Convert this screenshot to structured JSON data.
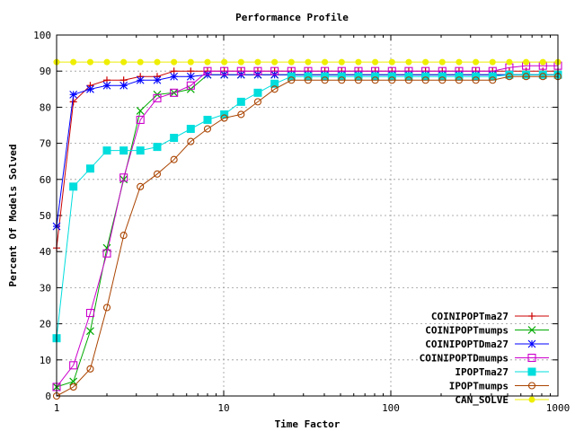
{
  "chart_data": {
    "type": "line",
    "title": "Performance Profile",
    "xlabel": "Time Factor",
    "ylabel": "Percent Of Models Solved",
    "xscale": "log",
    "xlim": [
      1,
      1000
    ],
    "ylim": [
      0,
      100
    ],
    "x_ticks": [
      1,
      10,
      100,
      1000
    ],
    "x_tick_labels": [
      "1",
      "10",
      "100",
      "1000"
    ],
    "y_ticks": [
      0,
      10,
      20,
      30,
      40,
      50,
      60,
      70,
      80,
      90,
      100
    ],
    "y_tick_labels": [
      "0",
      "10",
      "20",
      "30",
      "40",
      "50",
      "60",
      "70",
      "80",
      "90",
      "100"
    ],
    "grid": true,
    "legend_position": "bottom-right",
    "series": [
      {
        "name": "COINIPOPTma27",
        "color": "#cc0000",
        "marker": "plus",
        "x": [
          1,
          1.26,
          1.59,
          2,
          2.52,
          3.17,
          4,
          5.04,
          6.35,
          8,
          10.08,
          12.7,
          16,
          20.16,
          25.4,
          32,
          40.3,
          50.8,
          64,
          80.6,
          101.6,
          128,
          161.3,
          203.2,
          256,
          322.5,
          406.4,
          512,
          645.1,
          812.8,
          1000
        ],
        "y": [
          41,
          81.5,
          86,
          87.5,
          87.5,
          88.5,
          88.5,
          90,
          90,
          90,
          90,
          90,
          90,
          90,
          90,
          90,
          90,
          90,
          90,
          90,
          90,
          90,
          90,
          90,
          90,
          90,
          90,
          90,
          90,
          90,
          90
        ]
      },
      {
        "name": "COINIPOPTmumps",
        "color": "#00aa00",
        "marker": "x",
        "x": [
          1,
          1.26,
          1.59,
          2,
          2.52,
          3.17,
          4,
          5.04,
          6.35,
          8,
          10.08,
          12.7,
          16,
          20.16,
          25.4,
          32,
          40.3,
          50.8,
          64,
          80.6,
          101.6,
          128,
          161.3,
          203.2,
          256,
          322.5,
          406.4,
          512,
          645.1,
          812.8,
          1000
        ],
        "y": [
          2.5,
          4,
          18,
          41,
          60,
          79,
          83.5,
          84,
          85,
          89,
          89,
          89,
          89,
          89,
          89,
          89,
          89,
          89,
          89,
          89,
          89,
          89,
          89,
          89,
          89,
          89,
          89,
          89,
          89,
          89,
          89
        ]
      },
      {
        "name": "COINIPOPTDma27",
        "color": "#0000ff",
        "marker": "star",
        "x": [
          1,
          1.26,
          1.59,
          2,
          2.52,
          3.17,
          4,
          5.04,
          6.35,
          8,
          10.08,
          12.7,
          16,
          20.16,
          25.4,
          32,
          40.3,
          50.8,
          64,
          80.6,
          101.6,
          128,
          161.3,
          203.2,
          256,
          322.5,
          406.4,
          512,
          645.1,
          812.8,
          1000
        ],
        "y": [
          47,
          83.5,
          85,
          86,
          86,
          87.5,
          87.5,
          88.5,
          88.5,
          89,
          89,
          89,
          89,
          89,
          89,
          89,
          89,
          89,
          89,
          89,
          89,
          89,
          89,
          89,
          89,
          89,
          89,
          89,
          89,
          89,
          89
        ]
      },
      {
        "name": "COINIPOPTDmumps",
        "color": "#cc00cc",
        "marker": "square",
        "x": [
          1,
          1.26,
          1.59,
          2,
          2.52,
          3.17,
          4,
          5.04,
          6.35,
          8,
          10.08,
          12.7,
          16,
          20.16,
          25.4,
          32,
          40.3,
          50.8,
          64,
          80.6,
          101.6,
          128,
          161.3,
          203.2,
          256,
          322.5,
          406.4,
          512,
          645.1,
          812.8,
          1000
        ],
        "y": [
          2.5,
          8.5,
          23,
          39.5,
          60.5,
          76.5,
          82.5,
          84,
          86,
          90,
          90,
          90,
          90,
          90,
          90,
          90,
          90,
          90,
          90,
          90,
          90,
          90,
          90,
          90,
          90,
          90,
          90,
          91,
          91.5,
          91.5,
          91.5
        ]
      },
      {
        "name": "IPOPTma27",
        "color": "#00dddd",
        "marker": "filled-square",
        "x": [
          1,
          1.26,
          1.59,
          2,
          2.52,
          3.17,
          4,
          5.04,
          6.35,
          8,
          10.08,
          12.7,
          16,
          20.16,
          25.4,
          32,
          40.3,
          50.8,
          64,
          80.6,
          101.6,
          128,
          161.3,
          203.2,
          256,
          322.5,
          406.4,
          512,
          645.1,
          812.8,
          1000
        ],
        "y": [
          16,
          58,
          63,
          68,
          68,
          68,
          69,
          71.5,
          74,
          76.5,
          78,
          81.5,
          84,
          86.5,
          88.5,
          88.5,
          88.5,
          88.5,
          88.5,
          88.5,
          88.5,
          88.5,
          88.5,
          88.5,
          88.5,
          88.5,
          88.5,
          89,
          89,
          89,
          89
        ]
      },
      {
        "name": "IPOPTmumps",
        "color": "#aa4400",
        "marker": "circle",
        "x": [
          1,
          1.26,
          1.59,
          2,
          2.52,
          3.17,
          4,
          5.04,
          6.35,
          8,
          10.08,
          12.7,
          16,
          20.16,
          25.4,
          32,
          40.3,
          50.8,
          64,
          80.6,
          101.6,
          128,
          161.3,
          203.2,
          256,
          322.5,
          406.4,
          512,
          645.1,
          812.8,
          1000
        ],
        "y": [
          0,
          2.5,
          7.5,
          24.5,
          44.5,
          58,
          61.5,
          65.5,
          70.5,
          74,
          77,
          78,
          81.5,
          85,
          87.5,
          87.5,
          87.5,
          87.5,
          87.5,
          87.5,
          87.5,
          87.5,
          87.5,
          87.5,
          87.5,
          87.5,
          87.5,
          88.5,
          88.5,
          88.5,
          88.5
        ]
      },
      {
        "name": "CAN_SOLVE",
        "color": "#eeee00",
        "marker": "filled-circle",
        "x": [
          1,
          1.26,
          1.59,
          2,
          2.52,
          3.17,
          4,
          5.04,
          6.35,
          8,
          10.08,
          12.7,
          16,
          20.16,
          25.4,
          32,
          40.3,
          50.8,
          64,
          80.6,
          101.6,
          128,
          161.3,
          203.2,
          256,
          322.5,
          406.4,
          512,
          645.1,
          812.8,
          1000
        ],
        "y": [
          92.5,
          92.5,
          92.5,
          92.5,
          92.5,
          92.5,
          92.5,
          92.5,
          92.5,
          92.5,
          92.5,
          92.5,
          92.5,
          92.5,
          92.5,
          92.5,
          92.5,
          92.5,
          92.5,
          92.5,
          92.5,
          92.5,
          92.5,
          92.5,
          92.5,
          92.5,
          92.5,
          92.5,
          92.5,
          92.5,
          92.5
        ]
      }
    ]
  }
}
